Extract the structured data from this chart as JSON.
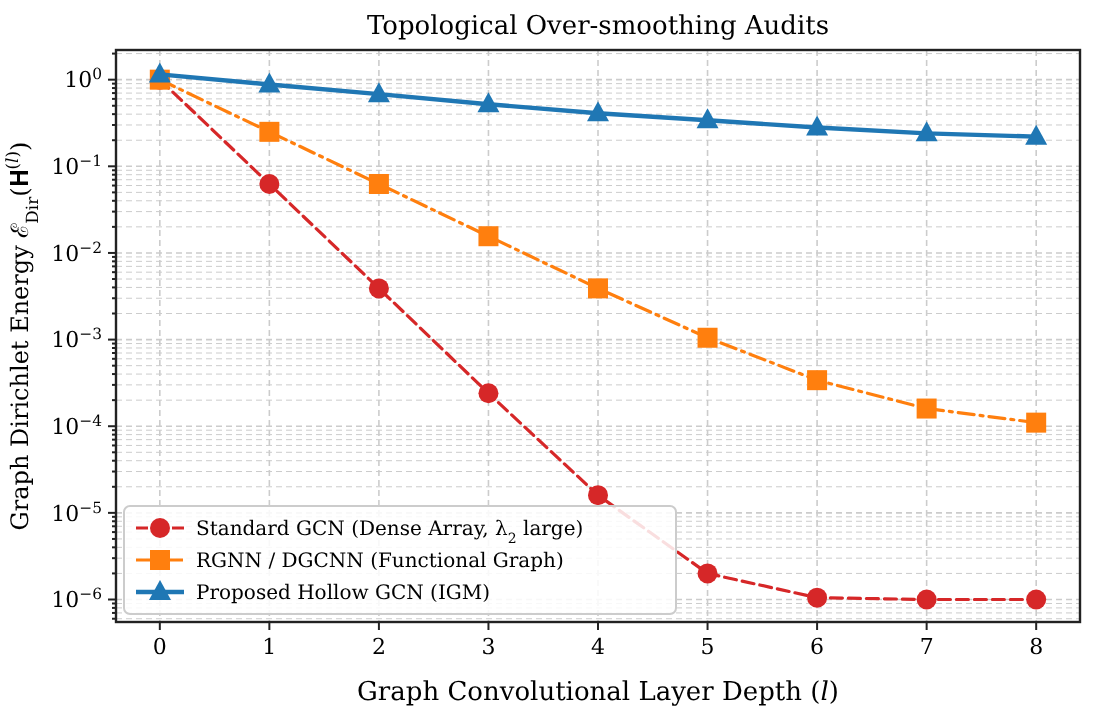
{
  "chart_data": {
    "type": "line",
    "title": "Topological Over-smoothing Audits",
    "xlabel": "Graph Convolutional Layer Depth (𝑙)",
    "ylabel": "Graph Dirichlet Energy ℰ$_{Dir}$(𝐇$^{(𝑙)}$)",
    "x": [
      0,
      1,
      2,
      3,
      4,
      5,
      6,
      7,
      8
    ],
    "series": [
      {
        "name": "Standard GCN (Dense Array, λ$_{2}$ large)",
        "color": "#d62728",
        "marker": "circle",
        "line_style": "dashed",
        "values": [
          1,
          0.0625,
          0.0039,
          0.00024,
          1.6e-05,
          2e-06,
          1.05e-06,
          1e-06,
          1e-06
        ]
      },
      {
        "name": "RGNN / DGCNN (Functional Graph)",
        "color": "#ff7f0e",
        "marker": "square",
        "line_style": "dashdot",
        "values": [
          1,
          0.25,
          0.0625,
          0.0156,
          0.0039,
          0.00105,
          0.00034,
          0.00016,
          0.00011
        ]
      },
      {
        "name": "Proposed Hollow GCN (IGM)",
        "color": "#1f77b4",
        "marker": "triangle",
        "line_style": "solid",
        "values": [
          1.15,
          0.88,
          0.68,
          0.52,
          0.41,
          0.34,
          0.28,
          0.24,
          0.22
        ]
      }
    ],
    "log": "y",
    "grid": true,
    "legend": "bottom left",
    "xlim": [
      -0.4,
      8.4
    ],
    "xticks": [
      0,
      1,
      2,
      3,
      4,
      5,
      6,
      7,
      8
    ],
    "ylim": [
      5.5e-07,
      2.2
    ],
    "yticks": [
      {
        "value": 1e-06,
        "label": "10$^{−6}$"
      },
      {
        "value": 1e-05,
        "label": "10$^{−5}$"
      },
      {
        "value": 0.0001,
        "label": "10$^{−4}$"
      },
      {
        "value": 0.001,
        "label": "10$^{−3}$"
      },
      {
        "value": 0.01,
        "label": "10$^{−2}$"
      },
      {
        "value": 0.1,
        "label": "10$^{−1}$"
      },
      {
        "value": 1,
        "label": "10$^{0}$"
      },
      {
        "value": 6e-07,
        "label": null
      },
      {
        "value": 7e-07,
        "label": null
      },
      {
        "value": 8e-07,
        "label": null
      },
      {
        "value": 9e-07,
        "label": null
      },
      {
        "value": 2e-06,
        "label": null
      },
      {
        "value": 3e-06,
        "label": null
      },
      {
        "value": 4e-06,
        "label": null
      },
      {
        "value": 5e-06,
        "label": null
      },
      {
        "value": 6e-06,
        "label": null
      },
      {
        "value": 7e-06,
        "label": null
      },
      {
        "value": 8e-06,
        "label": null
      },
      {
        "value": 9e-06,
        "label": null
      },
      {
        "value": 2e-05,
        "label": null
      },
      {
        "value": 3e-05,
        "label": null
      },
      {
        "value": 4e-05,
        "label": null
      },
      {
        "value": 5e-05,
        "label": null
      },
      {
        "value": 6e-05,
        "label": null
      },
      {
        "value": 7e-05,
        "label": null
      },
      {
        "value": 8e-05,
        "label": null
      },
      {
        "value": 9e-05,
        "label": null
      },
      {
        "value": 0.0002,
        "label": null
      },
      {
        "value": 0.0003,
        "label": null
      },
      {
        "value": 0.0004,
        "label": null
      },
      {
        "value": 0.0005,
        "label": null
      },
      {
        "value": 0.0006,
        "label": null
      },
      {
        "value": 0.0007,
        "label": null
      },
      {
        "value": 0.0008,
        "label": null
      },
      {
        "value": 0.0009,
        "label": null
      },
      {
        "value": 0.002,
        "label": null
      },
      {
        "value": 0.003,
        "label": null
      },
      {
        "value": 0.004,
        "label": null
      },
      {
        "value": 0.005,
        "label": null
      },
      {
        "value": 0.006,
        "label": null
      },
      {
        "value": 0.007,
        "label": null
      },
      {
        "value": 0.008,
        "label": null
      },
      {
        "value": 0.009,
        "label": null
      },
      {
        "value": 0.02,
        "label": null
      },
      {
        "value": 0.03,
        "label": null
      },
      {
        "value": 0.04,
        "label": null
      },
      {
        "value": 0.05,
        "label": null
      },
      {
        "value": 0.06,
        "label": null
      },
      {
        "value": 0.07,
        "label": null
      },
      {
        "value": 0.08,
        "label": null
      },
      {
        "value": 0.09,
        "label": null
      },
      {
        "value": 0.2,
        "label": null
      },
      {
        "value": 0.3,
        "label": null
      },
      {
        "value": 0.4,
        "label": null
      },
      {
        "value": 0.5,
        "label": null
      },
      {
        "value": 0.6,
        "label": null
      },
      {
        "value": 0.7,
        "label": null
      },
      {
        "value": 0.8,
        "label": null
      },
      {
        "value": 0.9,
        "label": null
      },
      {
        "value": 2,
        "label": null
      }
    ]
  }
}
